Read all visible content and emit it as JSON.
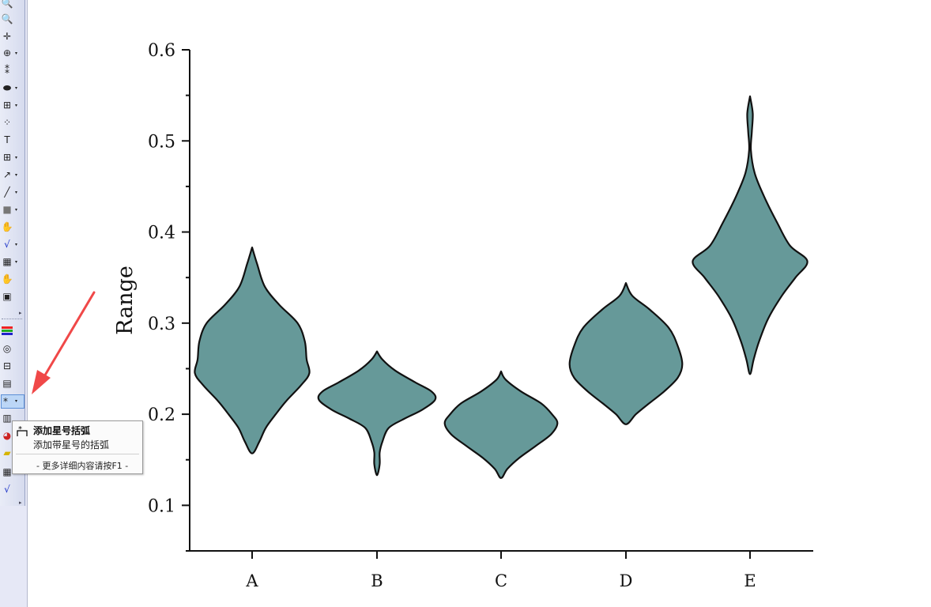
{
  "toolbar": {
    "icons": [
      "zoom-in-icon",
      "zoom-out-icon",
      "data-reader-icon",
      "screen-reader-icon",
      "data-cursor-icon",
      "mask-icon",
      "region-icon",
      "scatter-points-icon",
      "text-tool-icon",
      "annotation-icon",
      "arrow-icon",
      "line-icon",
      "rectangle-icon",
      "pan-hand-icon",
      "equation-icon",
      "graph-insert-icon",
      "move-hand-icon",
      "layer-icon",
      "color-scale-icon",
      "legend-icon",
      "scale-bar-icon",
      "table-insert-icon",
      "asterisk-bracket-icon",
      "notes-icon",
      "image-icon",
      "folder-icon",
      "grid-icon",
      "equation2-icon"
    ]
  },
  "tooltip": {
    "title": "添加星号括弧",
    "description": "添加带星号的括弧",
    "help": "- 更多详细内容请按F1 -"
  },
  "annotation": {
    "arrow_color": "#f04848"
  },
  "chart_data": {
    "type": "violin",
    "categories": [
      "A",
      "B",
      "C",
      "D",
      "E"
    ],
    "ylabel": "Range",
    "xlabel": "",
    "ylim": [
      0.05,
      0.6
    ],
    "yticks": [
      0.1,
      0.2,
      0.3,
      0.4,
      0.5,
      0.6
    ],
    "ytick_labels": [
      "0.1",
      "0.2",
      "0.3",
      "0.4",
      "0.5",
      "0.6"
    ],
    "fill_color": "#669999",
    "stroke_color": "#111111",
    "grid": false,
    "violins": [
      {
        "category": "A",
        "min": 0.157,
        "max": 0.383,
        "profile": [
          [
            0.383,
            0.0
          ],
          [
            0.365,
            0.055
          ],
          [
            0.34,
            0.14
          ],
          [
            0.32,
            0.3
          ],
          [
            0.3,
            0.5
          ],
          [
            0.28,
            0.58
          ],
          [
            0.26,
            0.6
          ],
          [
            0.245,
            0.63
          ],
          [
            0.232,
            0.54
          ],
          [
            0.215,
            0.38
          ],
          [
            0.2,
            0.26
          ],
          [
            0.185,
            0.15
          ],
          [
            0.17,
            0.08
          ],
          [
            0.157,
            0.0
          ]
        ]
      },
      {
        "category": "B",
        "min": 0.133,
        "max": 0.269,
        "profile": [
          [
            0.269,
            0.0
          ],
          [
            0.26,
            0.06
          ],
          [
            0.248,
            0.2
          ],
          [
            0.235,
            0.42
          ],
          [
            0.225,
            0.6
          ],
          [
            0.216,
            0.64
          ],
          [
            0.205,
            0.5
          ],
          [
            0.195,
            0.3
          ],
          [
            0.185,
            0.13
          ],
          [
            0.17,
            0.06
          ],
          [
            0.158,
            0.03
          ],
          [
            0.145,
            0.03
          ],
          [
            0.133,
            0.0
          ]
        ]
      },
      {
        "category": "C",
        "min": 0.13,
        "max": 0.247,
        "profile": [
          [
            0.247,
            0.0
          ],
          [
            0.238,
            0.05
          ],
          [
            0.225,
            0.22
          ],
          [
            0.212,
            0.44
          ],
          [
            0.2,
            0.56
          ],
          [
            0.19,
            0.62
          ],
          [
            0.178,
            0.55
          ],
          [
            0.165,
            0.38
          ],
          [
            0.152,
            0.2
          ],
          [
            0.14,
            0.07
          ],
          [
            0.13,
            0.0
          ]
        ]
      },
      {
        "category": "D",
        "min": 0.189,
        "max": 0.344,
        "profile": [
          [
            0.344,
            0.0
          ],
          [
            0.33,
            0.07
          ],
          [
            0.315,
            0.26
          ],
          [
            0.295,
            0.47
          ],
          [
            0.275,
            0.57
          ],
          [
            0.255,
            0.62
          ],
          [
            0.24,
            0.57
          ],
          [
            0.225,
            0.42
          ],
          [
            0.21,
            0.23
          ],
          [
            0.2,
            0.11
          ],
          [
            0.189,
            0.0
          ]
        ]
      },
      {
        "category": "E",
        "min": 0.244,
        "max": 0.549,
        "profile": [
          [
            0.549,
            0.0
          ],
          [
            0.53,
            0.03
          ],
          [
            0.51,
            0.02
          ],
          [
            0.49,
            0.01
          ],
          [
            0.465,
            0.05
          ],
          [
            0.44,
            0.15
          ],
          [
            0.41,
            0.3
          ],
          [
            0.385,
            0.44
          ],
          [
            0.368,
            0.63
          ],
          [
            0.35,
            0.5
          ],
          [
            0.33,
            0.35
          ],
          [
            0.305,
            0.2
          ],
          [
            0.28,
            0.1
          ],
          [
            0.26,
            0.04
          ],
          [
            0.244,
            0.0
          ]
        ]
      }
    ]
  }
}
